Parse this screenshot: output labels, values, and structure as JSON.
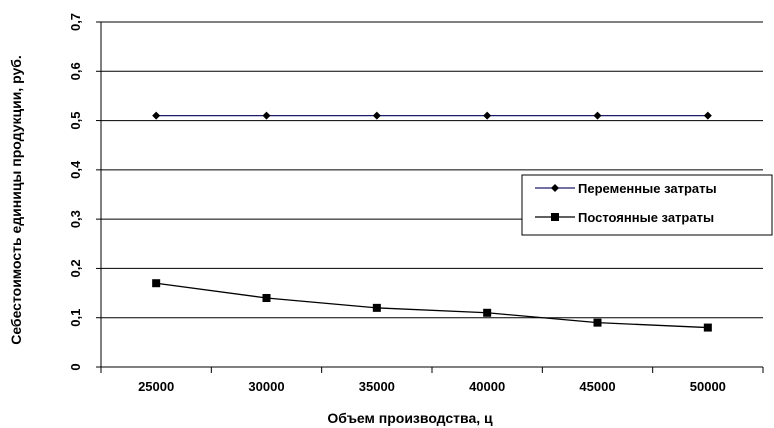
{
  "chart_data": {
    "type": "line",
    "xlabel": "Объем производства, ц",
    "ylabel": "Себестоимость единицы продукции, руб.",
    "categories": [
      "25000",
      "30000",
      "35000",
      "40000",
      "45000",
      "50000"
    ],
    "ylim": [
      0,
      0.7
    ],
    "yticks": [
      "0",
      "0,1",
      "0,2",
      "0,3",
      "0,4",
      "0,5",
      "0,6",
      "0,7"
    ],
    "grid": "horizontal",
    "legend_position": "right",
    "series": [
      {
        "name": "Переменные затраты",
        "values": [
          0.51,
          0.51,
          0.51,
          0.51,
          0.51,
          0.51
        ],
        "color": "#1c1c6e",
        "marker": "diamond"
      },
      {
        "name": "Постоянные затраты",
        "values": [
          0.17,
          0.14,
          0.12,
          0.11,
          0.09,
          0.08
        ],
        "color": "#000000",
        "marker": "square"
      }
    ]
  }
}
